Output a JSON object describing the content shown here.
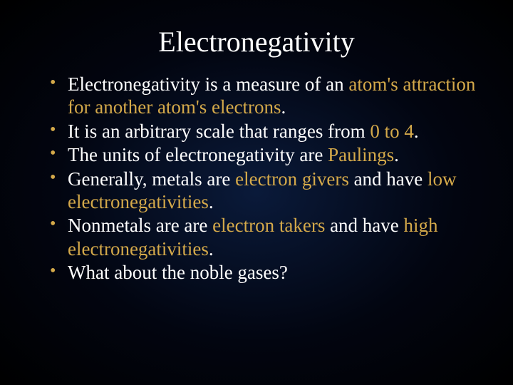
{
  "title": "Electronegativity",
  "colors": {
    "background_gradient_center": "#0a1a3a",
    "background_gradient_mid": "#020510",
    "background_gradient_edge": "#000000",
    "text_color": "#ffffff",
    "highlight_color": "#d4a94a",
    "bullet_marker_color": "#d4a94a"
  },
  "typography": {
    "font_family": "Times New Roman",
    "title_fontsize": 40,
    "body_fontsize": 27
  },
  "bullets": [
    {
      "pre1": "Electronegativity is a measure of an ",
      "hl1": "atom's attraction for another atom's electrons",
      "post1": "."
    },
    {
      "pre1": "It is an arbitrary scale that ranges from ",
      "hl1": "0 to 4",
      "post1": "."
    },
    {
      "pre1": "The units of electronegativity are ",
      "hl1": "Paulings",
      "post1": "."
    },
    {
      "pre1": "Generally, metals are ",
      "hl1": "electron givers",
      "mid1": " and have ",
      "hl2": "low electronegativities",
      "post1": "."
    },
    {
      "pre1": "Nonmetals are are ",
      "hl1": "electron takers",
      "mid1": " and have ",
      "hl2": "high electronegativities",
      "post1": "."
    },
    {
      "pre1": "What about the noble gases?"
    }
  ]
}
